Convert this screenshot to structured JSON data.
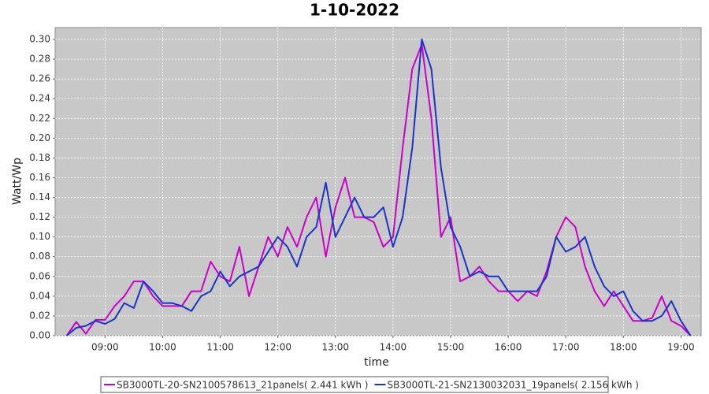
{
  "chart_data": {
    "type": "line",
    "title": "1-10-2022",
    "x_label": "time",
    "y_label": "Watt/Wp",
    "x": [
      500,
      510,
      520,
      530,
      540,
      550,
      560,
      570,
      580,
      590,
      600,
      610,
      620,
      630,
      640,
      650,
      660,
      670,
      680,
      690,
      700,
      710,
      720,
      730,
      740,
      750,
      760,
      770,
      780,
      790,
      800,
      810,
      820,
      830,
      840,
      850,
      860,
      870,
      880,
      890,
      900,
      910,
      920,
      930,
      940,
      950,
      960,
      970,
      980,
      990,
      1000,
      1010,
      1020,
      1030,
      1040,
      1050,
      1060,
      1070,
      1080,
      1090,
      1100,
      1110,
      1120,
      1130,
      1140,
      1150
    ],
    "series": [
      {
        "name": "SB3000TL-20-SN2100578613_21panels( 2.441 kWh )",
        "color": "#cc00cc",
        "values": [
          0,
          0.014,
          0.002,
          0.016,
          0.016,
          0.03,
          0.04,
          0.055,
          0.055,
          0.04,
          0.03,
          0.03,
          0.03,
          0.045,
          0.045,
          0.075,
          0.06,
          0.055,
          0.09,
          0.04,
          0.07,
          0.1,
          0.08,
          0.11,
          0.09,
          0.12,
          0.14,
          0.08,
          0.13,
          0.16,
          0.12,
          0.12,
          0.115,
          0.09,
          0.1,
          0.19,
          0.27,
          0.295,
          0.22,
          0.1,
          0.12,
          0.055,
          0.06,
          0.07,
          0.055,
          0.045,
          0.045,
          0.035,
          0.045,
          0.04,
          0.065,
          0.1,
          0.12,
          0.11,
          0.07,
          0.045,
          0.03,
          0.045,
          0.03,
          0.015,
          0.015,
          0.018,
          0.04,
          0.015,
          0.01,
          0
        ]
      },
      {
        "name": "SB3000TL-21-SN2130032031_19panels( 2.156 kWh )",
        "color": "#1a33cc",
        "values": [
          0,
          0.008,
          0.01,
          0.015,
          0.012,
          0.017,
          0.033,
          0.028,
          0.055,
          0.045,
          0.033,
          0.033,
          0.03,
          0.025,
          0.04,
          0.045,
          0.065,
          0.05,
          0.06,
          0.065,
          0.07,
          0.085,
          0.1,
          0.09,
          0.07,
          0.1,
          0.11,
          0.155,
          0.1,
          0.12,
          0.14,
          0.12,
          0.12,
          0.13,
          0.09,
          0.12,
          0.19,
          0.3,
          0.27,
          0.17,
          0.11,
          0.09,
          0.06,
          0.065,
          0.06,
          0.06,
          0.045,
          0.045,
          0.045,
          0.045,
          0.06,
          0.1,
          0.085,
          0.09,
          0.1,
          0.07,
          0.05,
          0.04,
          0.045,
          0.025,
          0.015,
          0.015,
          0.02,
          0.035,
          0.015,
          0
        ]
      }
    ],
    "xlim": [
      488,
      1161
    ],
    "xticks": [
      {
        "value": 540,
        "label": "09:00"
      },
      {
        "value": 600,
        "label": "10:00"
      },
      {
        "value": 660,
        "label": "11:00"
      },
      {
        "value": 720,
        "label": "12:00"
      },
      {
        "value": 780,
        "label": "13:00"
      },
      {
        "value": 840,
        "label": "14:00"
      },
      {
        "value": 900,
        "label": "15:00"
      },
      {
        "value": 960,
        "label": "16:00"
      },
      {
        "value": 1020,
        "label": "17:00"
      },
      {
        "value": 1080,
        "label": "18:00"
      },
      {
        "value": 1140,
        "label": "19:00"
      }
    ],
    "ylim": [
      0,
      0.312
    ],
    "yticks": [
      {
        "value": 0,
        "label": "0.00"
      },
      {
        "value": 0.02,
        "label": "0.02"
      },
      {
        "value": 0.04,
        "label": "0.04"
      },
      {
        "value": 0.06,
        "label": "0.06"
      },
      {
        "value": 0.08,
        "label": "0.08"
      },
      {
        "value": 0.1,
        "label": "0.10"
      },
      {
        "value": 0.12,
        "label": "0.12"
      },
      {
        "value": 0.14,
        "label": "0.14"
      },
      {
        "value": 0.16,
        "label": "0.16"
      },
      {
        "value": 0.18,
        "label": "0.18"
      },
      {
        "value": 0.2,
        "label": "0.20"
      },
      {
        "value": 0.22,
        "label": "0.22"
      },
      {
        "value": 0.24,
        "label": "0.24"
      },
      {
        "value": 0.26,
        "label": "0.26"
      },
      {
        "value": 0.28,
        "label": "0.28"
      },
      {
        "value": 0.3,
        "label": "0.30"
      }
    ],
    "grid": true,
    "legend": "bottom"
  }
}
